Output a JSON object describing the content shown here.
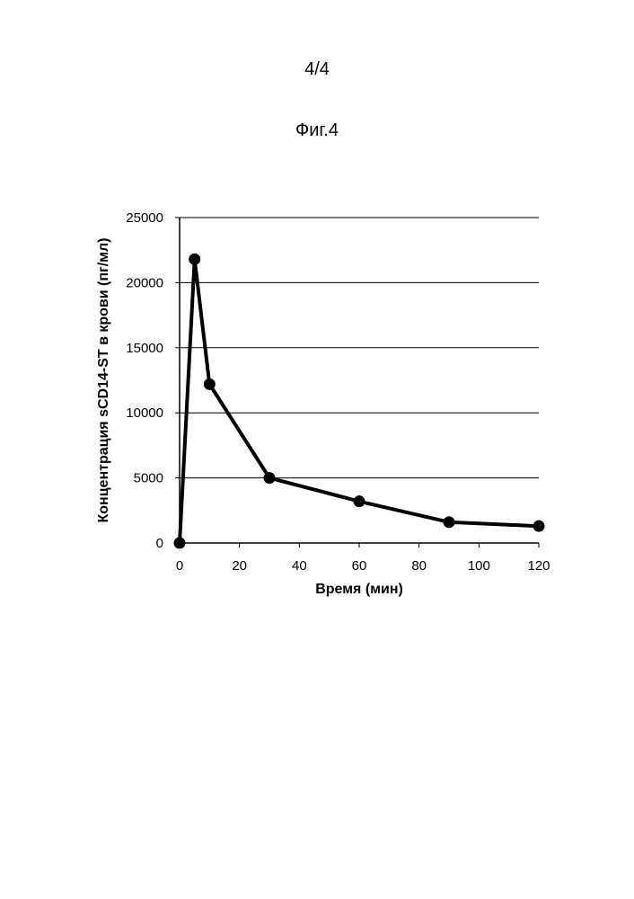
{
  "page": {
    "page_number": "4/4",
    "figure_label": "Фиг.4"
  },
  "chart_data": {
    "type": "line",
    "xlabel": "Время (мин)",
    "ylabel": "Концентрация sCD14-ST в крови (пг/мл)",
    "xlim": [
      0,
      120
    ],
    "ylim": [
      0,
      25000
    ],
    "x_ticks": [
      0,
      20,
      40,
      60,
      80,
      100,
      120
    ],
    "y_ticks": [
      0,
      5000,
      10000,
      15000,
      20000,
      25000
    ],
    "grid": "horizontal",
    "series": [
      {
        "color": "#000000",
        "marker": "circle",
        "x": [
          0,
          5,
          10,
          30,
          60,
          90,
          120
        ],
        "y": [
          0,
          21800,
          12200,
          5000,
          3200,
          1600,
          1300
        ]
      }
    ]
  }
}
